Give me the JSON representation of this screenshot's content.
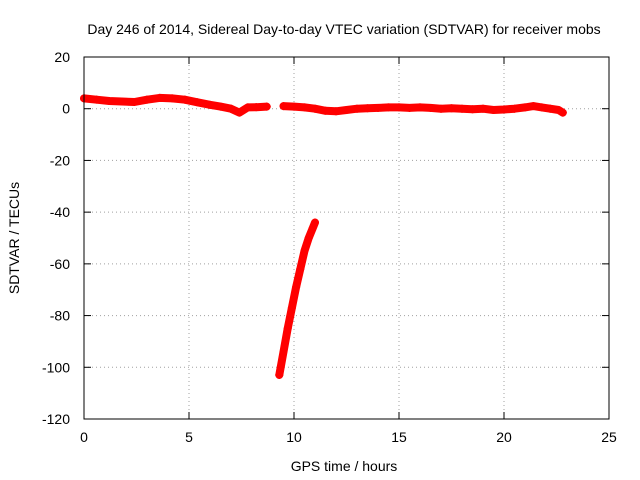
{
  "chart_data": {
    "type": "scatter",
    "title": "Day 246 of 2014, Sidereal Day-to-day VTEC variation (SDTVAR) for receiver mobs",
    "xlabel": "GPS time / hours",
    "ylabel": "SDTVAR / TECUs",
    "xlim": [
      0,
      25
    ],
    "ylim": [
      -120,
      20
    ],
    "xticks": [
      0,
      5,
      10,
      15,
      20,
      25
    ],
    "yticks": [
      20,
      0,
      -20,
      -40,
      -60,
      -80,
      -100,
      -120
    ],
    "grid": true,
    "series": [
      {
        "name": "SDTVAR",
        "color": "#ff0000",
        "marker": "plus",
        "segments": [
          {
            "x": [
              0.0,
              0.6,
              1.2,
              1.8,
              2.4,
              3.0,
              3.6,
              4.2,
              4.8,
              5.4,
              6.0,
              6.5,
              7.0,
              7.4,
              7.8,
              8.2,
              8.7
            ],
            "y": [
              4.0,
              3.5,
              3.0,
              2.8,
              2.6,
              3.5,
              4.2,
              4.0,
              3.5,
              2.5,
              1.5,
              0.8,
              0.0,
              -1.5,
              0.5,
              0.6,
              0.8
            ]
          },
          {
            "x": [
              9.5,
              10.0,
              10.5,
              11.0,
              11.5,
              12.0,
              12.5,
              13.0,
              13.5,
              14.0,
              14.5,
              15.0,
              15.5,
              16.0,
              16.5,
              17.0,
              17.5,
              18.0,
              18.5,
              19.0,
              19.5,
              20.0,
              20.5,
              21.0,
              21.4,
              21.8,
              22.2,
              22.6,
              22.8
            ],
            "y": [
              1.0,
              0.8,
              0.5,
              0.0,
              -0.8,
              -1.0,
              -0.5,
              0.0,
              0.2,
              0.3,
              0.5,
              0.5,
              0.3,
              0.5,
              0.3,
              0.0,
              0.2,
              0.0,
              -0.2,
              0.0,
              -0.5,
              -0.3,
              0.0,
              0.5,
              1.0,
              0.5,
              0.0,
              -0.5,
              -1.5
            ]
          },
          {
            "x": [
              9.3,
              9.5,
              9.7,
              9.9,
              10.1,
              10.3,
              10.5,
              10.7,
              10.9,
              11.0
            ],
            "y": [
              -103,
              -94,
              -85,
              -77,
              -69,
              -62,
              -55,
              -50,
              -46,
              -44
            ]
          }
        ]
      }
    ]
  }
}
